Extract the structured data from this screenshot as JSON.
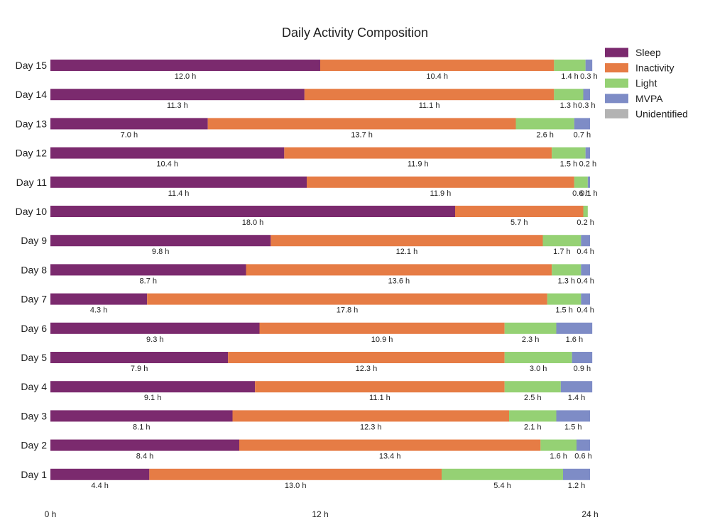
{
  "chart_data": {
    "type": "bar",
    "orientation": "horizontal",
    "stacked": true,
    "title": "Daily Activity Composition",
    "xlabel": "",
    "ylabel": "",
    "xlim": [
      0,
      24
    ],
    "x_ticks": [
      {
        "value": 0,
        "label": "0 h"
      },
      {
        "value": 12,
        "label": "12 h"
      },
      {
        "value": 24,
        "label": "24 h"
      }
    ],
    "grid": false,
    "legend_position": "top-right",
    "label_unit": "h",
    "categories": [
      "Day 15",
      "Day 14",
      "Day 13",
      "Day 12",
      "Day 11",
      "Day 10",
      "Day 9",
      "Day 8",
      "Day 7",
      "Day 6",
      "Day 5",
      "Day 4",
      "Day 3",
      "Day 2",
      "Day 1"
    ],
    "series": [
      {
        "name": "Sleep",
        "color": "#7b2a6e",
        "values": [
          12.0,
          11.3,
          7.0,
          10.4,
          11.4,
          18.0,
          9.8,
          8.7,
          4.3,
          9.3,
          7.9,
          9.1,
          8.1,
          8.4,
          4.4
        ]
      },
      {
        "name": "Inactivity",
        "color": "#e67c45",
        "values": [
          10.4,
          11.1,
          13.7,
          11.9,
          11.9,
          5.7,
          12.1,
          13.6,
          17.8,
          10.9,
          12.3,
          11.1,
          12.3,
          13.4,
          13.0
        ]
      },
      {
        "name": "Light",
        "color": "#95d174",
        "values": [
          1.4,
          1.3,
          2.6,
          1.5,
          0.6,
          0.2,
          1.7,
          1.3,
          1.5,
          2.3,
          3.0,
          2.5,
          2.1,
          1.6,
          5.4
        ]
      },
      {
        "name": "MVPA",
        "color": "#7e8cc6",
        "values": [
          0.3,
          0.3,
          0.7,
          0.2,
          0.1,
          0.0,
          0.4,
          0.4,
          0.4,
          1.6,
          0.9,
          1.4,
          1.5,
          0.6,
          1.2
        ]
      },
      {
        "name": "Unidentified",
        "color": "#b3b3b3",
        "values": [
          0,
          0,
          0,
          0,
          0,
          0,
          0,
          0,
          0,
          0,
          0,
          0,
          0,
          0,
          0
        ]
      }
    ]
  }
}
